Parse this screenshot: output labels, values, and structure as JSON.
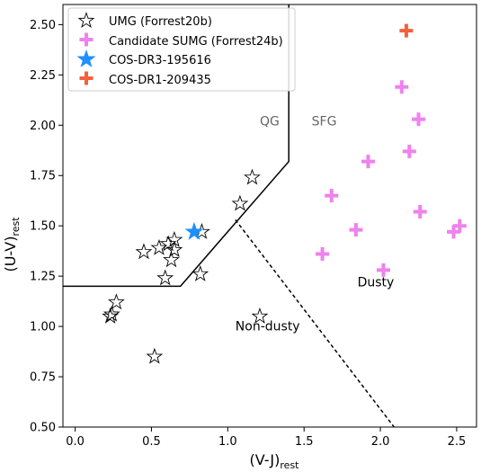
{
  "chart_data": {
    "type": "scatter",
    "xlabel_main": "(V-J)",
    "xlabel_sub": "rest",
    "ylabel_main": "(U-V)",
    "ylabel_sub": "rest",
    "xlim": [
      -0.08,
      2.63
    ],
    "ylim": [
      0.5,
      2.6
    ],
    "x_ticks": [
      0.0,
      0.5,
      1.0,
      1.5,
      2.0,
      2.5
    ],
    "x_tick_labels": [
      "0.0",
      "0.5",
      "1.0",
      "1.5",
      "2.0",
      "2.5"
    ],
    "y_ticks": [
      0.5,
      0.75,
      1.0,
      1.25,
      1.5,
      1.75,
      2.0,
      2.25,
      2.5
    ],
    "y_tick_labels": [
      "0.50",
      "0.75",
      "1.00",
      "1.25",
      "1.50",
      "1.75",
      "2.00",
      "2.25",
      "2.50"
    ],
    "grid": false,
    "legend_position": "top-left",
    "series": [
      {
        "name": "UMG (Forrest20b)",
        "marker": "star-open",
        "color": "#000000",
        "x": [
          0.23,
          0.24,
          0.27,
          0.45,
          0.52,
          0.55,
          0.59,
          0.61,
          0.63,
          0.65,
          0.65,
          0.82,
          0.83,
          1.08,
          1.16,
          1.21
        ],
        "y": [
          1.05,
          1.06,
          1.12,
          1.37,
          0.85,
          1.39,
          1.24,
          1.41,
          1.33,
          1.43,
          1.38,
          1.26,
          1.47,
          1.61,
          1.74,
          1.05
        ]
      },
      {
        "name": "Candidate SUMG (Forrest24b)",
        "marker": "plus",
        "color": "#ee82ee",
        "x": [
          1.62,
          1.68,
          1.84,
          1.92,
          2.02,
          2.14,
          2.19,
          2.25,
          2.26,
          2.48,
          2.52
        ],
        "y": [
          1.36,
          1.65,
          1.48,
          1.82,
          1.28,
          2.19,
          1.87,
          2.03,
          1.57,
          1.47,
          1.5
        ]
      },
      {
        "name": "COS-DR3-195616",
        "marker": "star-filled",
        "color": "#1e90ff",
        "x": [
          0.78
        ],
        "y": [
          1.47
        ]
      },
      {
        "name": "COS-DR1-209435",
        "marker": "plus",
        "color": "#f4603c",
        "x": [
          2.17
        ],
        "y": [
          2.47
        ]
      }
    ],
    "lines": {
      "qg_boundary": {
        "style": "solid",
        "x": [
          -0.08,
          0.69,
          1.4,
          1.4
        ],
        "y": [
          1.2,
          1.2,
          1.82,
          2.6
        ]
      },
      "dusty_divider": {
        "style": "dashed",
        "x": [
          1.05,
          2.09
        ],
        "y": [
          1.53,
          0.5
        ]
      }
    },
    "annotations": [
      {
        "text": "QG",
        "x": 1.21,
        "y": 2.0,
        "color": "#666666"
      },
      {
        "text": "SFG",
        "x": 1.55,
        "y": 2.0,
        "color": "#666666"
      },
      {
        "text": "Dusty",
        "x": 1.85,
        "y": 1.2,
        "color": "#000000"
      },
      {
        "text": "Non-dusty",
        "x": 1.05,
        "y": 0.98,
        "color": "#000000"
      }
    ]
  }
}
